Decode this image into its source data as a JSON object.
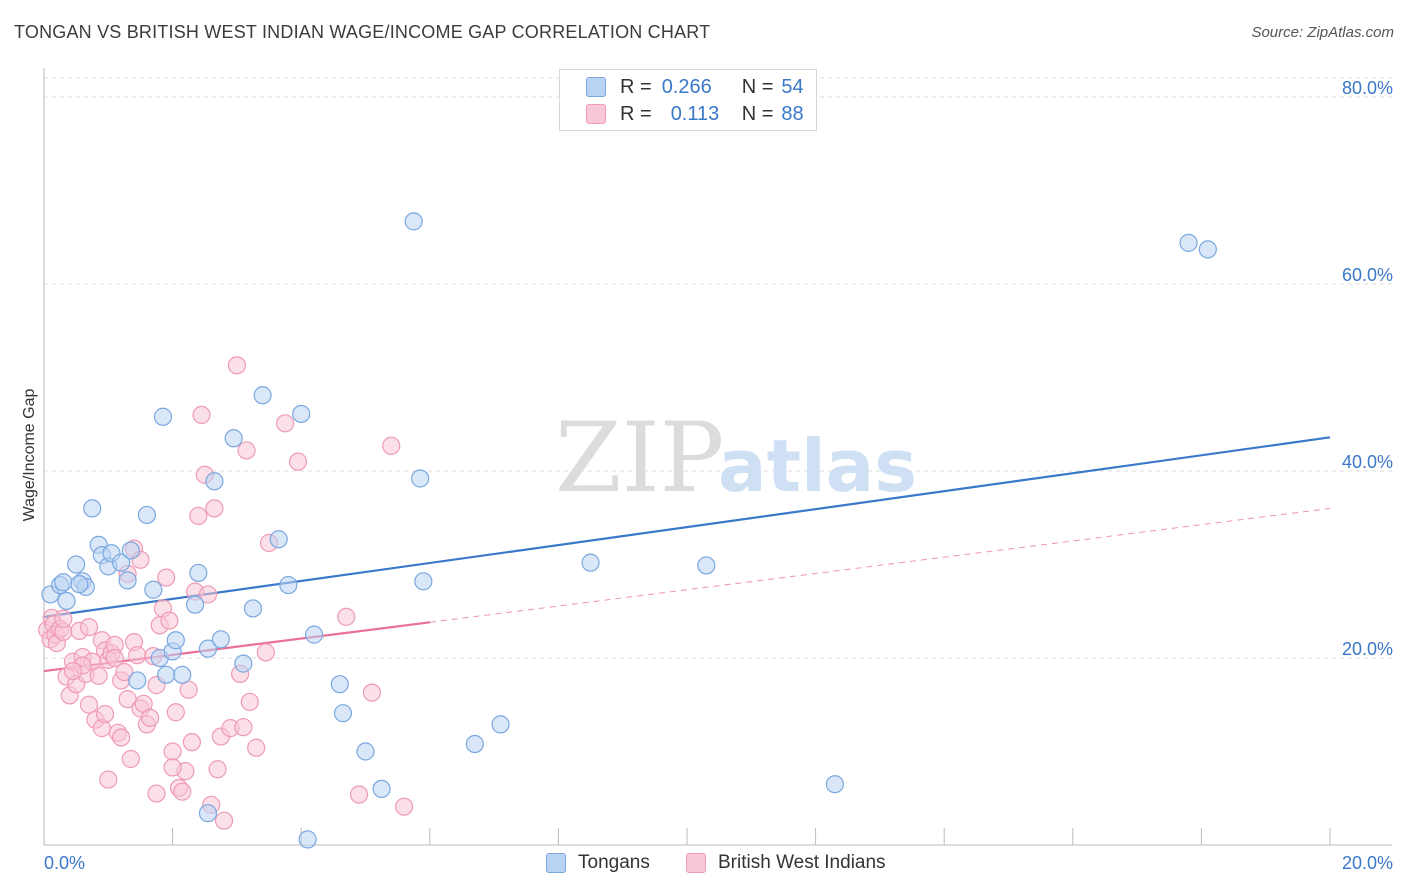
{
  "title": "TONGAN VS BRITISH WEST INDIAN WAGE/INCOME GAP CORRELATION CHART",
  "source": "Source: ZipAtlas.com",
  "watermark": {
    "zip": "ZIP",
    "atlas": "atlas"
  },
  "colors": {
    "blue": "#3a78c9",
    "blue_fill": "#b9d3f3",
    "blue_stroke": "#7aa8e0",
    "pink": "#e8709a",
    "pink_fill": "#f7c7d6",
    "pink_stroke": "#ef9ab6",
    "grid": "#dddddd",
    "axis_label": "#3a78c9"
  },
  "legend": {
    "rows": [
      {
        "r_label": "R =",
        "r_value": "0.266",
        "n_label": "N =",
        "n_value": "54"
      },
      {
        "r_label": "R =",
        "r_value": "0.113",
        "n_label": "N =",
        "n_value": "88"
      }
    ]
  },
  "bottom_legend": {
    "tongans": "Tongans",
    "bwi": "British West Indians"
  },
  "chart_data": {
    "type": "scatter",
    "title": "TONGAN VS BRITISH WEST INDIAN WAGE/INCOME GAP CORRELATION CHART",
    "xlabel": "",
    "ylabel": "Wage/Income Gap",
    "xlim": [
      0,
      20
    ],
    "ylim": [
      0,
      82
    ],
    "x_tick_labels": [
      "0.0%",
      "20.0%"
    ],
    "y_ticks": [
      20,
      40,
      60,
      80
    ],
    "y_tick_labels": [
      "20.0%",
      "40.0%",
      "60.0%",
      "80.0%"
    ],
    "grid": true,
    "series": [
      {
        "name": "Tongans",
        "r": 0.266,
        "n": 54,
        "trend": {
          "x": [
            0,
            20
          ],
          "y": [
            24.4,
            43.6
          ],
          "solid_until": 20
        },
        "points": [
          [
            0.1,
            26.8
          ],
          [
            0.25,
            27.8
          ],
          [
            0.35,
            26.1
          ],
          [
            0.3,
            28.1
          ],
          [
            0.5,
            30.0
          ],
          [
            0.6,
            28.2
          ],
          [
            0.65,
            27.6
          ],
          [
            0.75,
            36.0
          ],
          [
            0.85,
            32.1
          ],
          [
            0.9,
            31.0
          ],
          [
            1.0,
            29.8
          ],
          [
            1.05,
            31.2
          ],
          [
            1.2,
            30.2
          ],
          [
            1.3,
            28.3
          ],
          [
            1.35,
            31.5
          ],
          [
            1.6,
            35.3
          ],
          [
            1.7,
            27.3
          ],
          [
            1.8,
            20.0
          ],
          [
            1.85,
            45.8
          ],
          [
            1.9,
            18.2
          ],
          [
            2.0,
            20.7
          ],
          [
            2.05,
            21.9
          ],
          [
            2.15,
            18.2
          ],
          [
            2.35,
            25.7
          ],
          [
            2.4,
            29.1
          ],
          [
            2.55,
            21.0
          ],
          [
            2.65,
            38.9
          ],
          [
            2.75,
            22.0
          ],
          [
            2.95,
            43.5
          ],
          [
            3.1,
            19.4
          ],
          [
            3.25,
            25.3
          ],
          [
            3.4,
            48.1
          ],
          [
            3.65,
            32.7
          ],
          [
            3.8,
            27.8
          ],
          [
            4.0,
            46.1
          ],
          [
            4.1,
            0.6
          ],
          [
            4.2,
            22.5
          ],
          [
            4.6,
            17.2
          ],
          [
            4.65,
            14.1
          ],
          [
            5.0,
            10.0
          ],
          [
            5.25,
            6.0
          ],
          [
            5.75,
            66.7
          ],
          [
            5.85,
            39.2
          ],
          [
            5.9,
            28.2
          ],
          [
            6.7,
            10.8
          ],
          [
            7.1,
            12.9
          ],
          [
            8.5,
            30.2
          ],
          [
            10.3,
            29.9
          ],
          [
            12.3,
            6.5
          ],
          [
            17.8,
            64.4
          ],
          [
            18.1,
            63.7
          ],
          [
            2.55,
            3.4
          ],
          [
            1.45,
            17.6
          ],
          [
            0.55,
            27.9
          ]
        ]
      },
      {
        "name": "British West Indians",
        "r": 0.113,
        "n": 88,
        "trend": {
          "x": [
            0,
            20
          ],
          "y": [
            18.6,
            36.0
          ],
          "solid_until": 6.0
        },
        "points": [
          [
            0.05,
            23.0
          ],
          [
            0.1,
            22.0
          ],
          [
            0.12,
            24.3
          ],
          [
            0.15,
            23.6
          ],
          [
            0.18,
            22.5
          ],
          [
            0.2,
            21.6
          ],
          [
            0.25,
            23.1
          ],
          [
            0.3,
            22.8
          ],
          [
            0.35,
            18.0
          ],
          [
            0.4,
            16.0
          ],
          [
            0.45,
            19.6
          ],
          [
            0.5,
            17.2
          ],
          [
            0.55,
            22.9
          ],
          [
            0.6,
            20.1
          ],
          [
            0.65,
            18.3
          ],
          [
            0.7,
            15.0
          ],
          [
            0.75,
            19.6
          ],
          [
            0.8,
            13.4
          ],
          [
            0.85,
            18.1
          ],
          [
            0.9,
            21.9
          ],
          [
            0.95,
            20.8
          ],
          [
            1.0,
            19.8
          ],
          [
            1.05,
            20.5
          ],
          [
            1.1,
            21.4
          ],
          [
            1.15,
            12.0
          ],
          [
            1.2,
            17.6
          ],
          [
            1.25,
            18.5
          ],
          [
            1.3,
            15.6
          ],
          [
            1.35,
            9.2
          ],
          [
            1.4,
            21.7
          ],
          [
            1.45,
            20.3
          ],
          [
            1.5,
            14.6
          ],
          [
            1.55,
            15.1
          ],
          [
            1.6,
            12.9
          ],
          [
            1.65,
            13.6
          ],
          [
            1.7,
            20.2
          ],
          [
            1.75,
            17.1
          ],
          [
            1.8,
            23.5
          ],
          [
            1.85,
            25.3
          ],
          [
            1.9,
            28.6
          ],
          [
            1.95,
            24.0
          ],
          [
            2.0,
            10.0
          ],
          [
            2.05,
            14.2
          ],
          [
            2.1,
            6.1
          ],
          [
            2.15,
            5.7
          ],
          [
            2.2,
            7.9
          ],
          [
            2.25,
            16.6
          ],
          [
            2.3,
            11.0
          ],
          [
            2.35,
            27.1
          ],
          [
            2.4,
            35.2
          ],
          [
            2.5,
            39.6
          ],
          [
            2.55,
            26.8
          ],
          [
            2.6,
            4.3
          ],
          [
            2.65,
            36.0
          ],
          [
            2.7,
            8.1
          ],
          [
            2.75,
            11.6
          ],
          [
            2.8,
            2.6
          ],
          [
            2.9,
            12.5
          ],
          [
            3.0,
            51.3
          ],
          [
            3.05,
            18.3
          ],
          [
            3.1,
            12.6
          ],
          [
            3.15,
            42.2
          ],
          [
            3.2,
            15.3
          ],
          [
            3.3,
            10.4
          ],
          [
            3.45,
            20.6
          ],
          [
            3.5,
            32.3
          ],
          [
            3.75,
            45.1
          ],
          [
            3.95,
            41.0
          ],
          [
            4.7,
            24.4
          ],
          [
            4.9,
            5.4
          ],
          [
            5.1,
            16.3
          ],
          [
            5.4,
            42.7
          ],
          [
            5.6,
            4.1
          ],
          [
            1.0,
            7.0
          ],
          [
            0.9,
            12.5
          ],
          [
            0.7,
            23.3
          ],
          [
            0.3,
            24.2
          ],
          [
            1.3,
            29.0
          ],
          [
            1.4,
            31.7
          ],
          [
            1.5,
            30.5
          ],
          [
            2.45,
            46.0
          ],
          [
            1.1,
            20.0
          ],
          [
            0.6,
            19.2
          ],
          [
            0.45,
            18.6
          ],
          [
            0.95,
            14.0
          ],
          [
            1.2,
            11.5
          ],
          [
            2.0,
            8.3
          ],
          [
            1.75,
            5.5
          ]
        ]
      }
    ]
  }
}
